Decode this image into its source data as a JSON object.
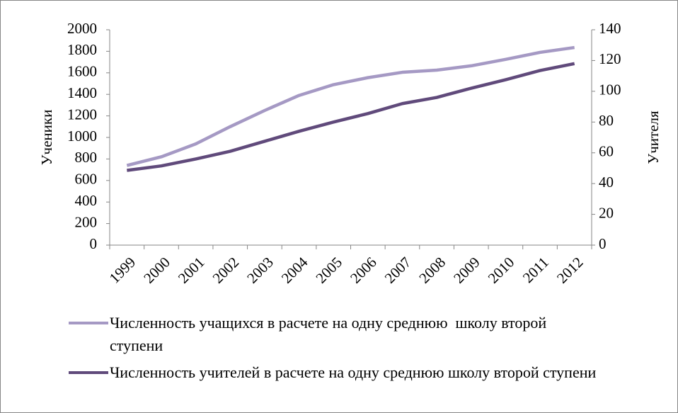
{
  "chart_data": {
    "type": "line",
    "categories": [
      "1999",
      "2000",
      "2001",
      "2002",
      "2003",
      "2004",
      "2005",
      "2006",
      "2007",
      "2008",
      "2009",
      "2010",
      "2011",
      "2012"
    ],
    "series": [
      {
        "name": "Численность учащихся в расчете на одну среднюю  школу второй ступени",
        "color": "#a599c4",
        "values": [
          740,
          820,
          940,
          1100,
          1250,
          1390,
          1490,
          1555,
          1605,
          1625,
          1665,
          1725,
          1790,
          1835
        ]
      },
      {
        "name": "Численность учителей в расчете на одну среднюю школу второй ступени",
        "color": "#604a7b",
        "axis": "y2",
        "values": [
          48.6,
          51.5,
          56,
          61,
          67.5,
          74,
          80,
          85.5,
          92,
          96,
          102,
          107.5,
          113.5,
          118
        ]
      }
    ],
    "ylabel": "Ученики",
    "y2label": "Учителя",
    "ylim": [
      0,
      2000
    ],
    "yticks": [
      0,
      200,
      400,
      600,
      800,
      1000,
      1200,
      1400,
      1600,
      1800,
      2000
    ],
    "y2lim": [
      0,
      140
    ],
    "y2ticks": [
      0,
      20,
      40,
      60,
      80,
      100,
      120,
      140
    ],
    "legend": "bottom"
  }
}
